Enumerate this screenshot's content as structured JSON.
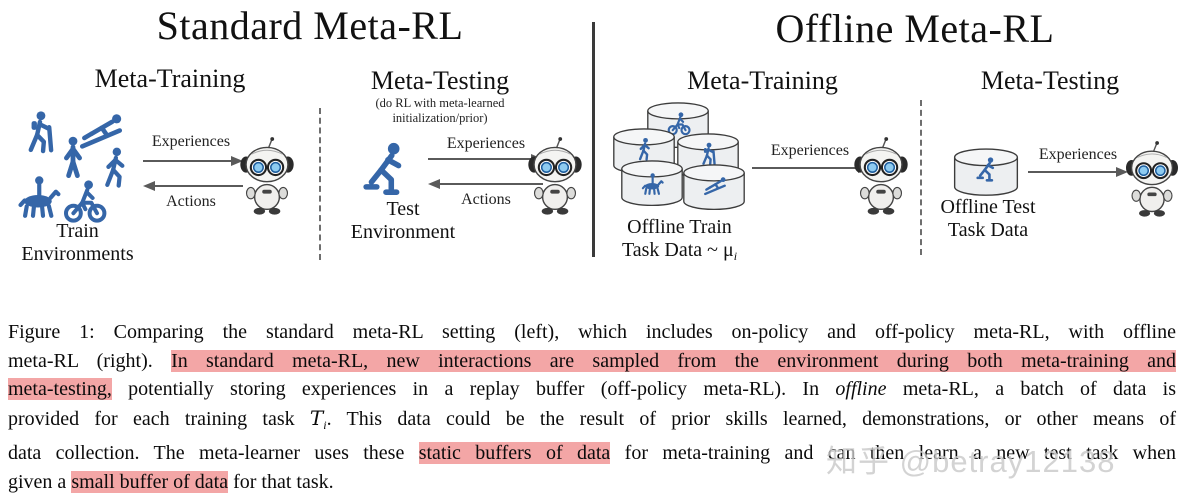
{
  "panel": {
    "left": {
      "title": "Standard Meta-RL",
      "training": {
        "heading": "Meta-Training",
        "env_label_line1": "Train",
        "env_label_line2": "Environments",
        "arrow_top": "Experiences",
        "arrow_bottom": "Actions"
      },
      "testing": {
        "heading": "Meta-Testing",
        "note_line1": "(do RL with meta-learned",
        "note_line2": "initialization/prior)",
        "env_label_line1": "Test",
        "env_label_line2": "Environment",
        "arrow_top": "Experiences",
        "arrow_bottom": "Actions"
      }
    },
    "right": {
      "title": "Offline Meta-RL",
      "training": {
        "heading": "Meta-Training",
        "data_label_line1": "Offline Train",
        "data_label_line2": "Task Data ~ μ",
        "data_label_sub": "i",
        "arrow_top": "Experiences"
      },
      "testing": {
        "heading": "Meta-Testing",
        "data_label_line1": "Offline Test",
        "data_label_line2": "Task Data",
        "arrow_top": "Experiences"
      }
    },
    "icon_names": [
      "hiker",
      "ski-jumper",
      "standing-person",
      "walking-person",
      "horse-rider",
      "cyclist",
      "skater",
      "robot",
      "data-cylinder"
    ],
    "accent_blue": "#3566a8",
    "highlight_pink": "#f3a6a6"
  },
  "caption": {
    "lines": [
      {
        "justify": true,
        "segments": [
          {
            "t": "Figure 1: Comparing the standard meta-RL setting (left), which includes on-policy and off-policy meta-RL, with offline"
          }
        ]
      },
      {
        "justify": true,
        "segments": [
          {
            "t": "meta-RL (right). "
          },
          {
            "t": "In standard meta-RL, new interactions are sampled from the environment during both meta-training and",
            "h": true
          }
        ]
      },
      {
        "justify": true,
        "segments": [
          {
            "t": "meta-testing,",
            "h": true
          },
          {
            "t": " potentially storing experiences in a replay buffer (off-policy meta-RL). In "
          },
          {
            "t": "offline",
            "em": true
          },
          {
            "t": " meta-RL, a batch of data is"
          }
        ]
      },
      {
        "justify": true,
        "segments": [
          {
            "t": "provided for each training task "
          },
          {
            "t": "T",
            "cal": true
          },
          {
            "t": "i",
            "sub": true
          },
          {
            "t": ". This data could be the result of prior skills learned, demonstrations, or other means of"
          }
        ]
      },
      {
        "justify": true,
        "segments": [
          {
            "t": "data collection. The meta-learner uses these "
          },
          {
            "t": "static buffers of data",
            "h": true
          },
          {
            "t": " for meta-training and can then learn a new test task when"
          }
        ]
      },
      {
        "justify": false,
        "segments": [
          {
            "t": "given a "
          },
          {
            "t": "small buffer of data",
            "h": true
          },
          {
            "t": " for that task."
          }
        ]
      }
    ]
  },
  "watermark": "知乎 @betray12138"
}
